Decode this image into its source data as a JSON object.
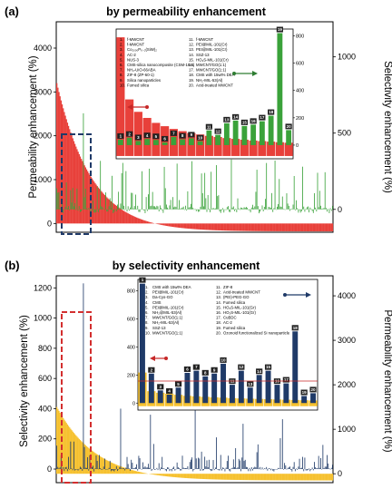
{
  "colors": {
    "permeability_a": "#e8403a",
    "selectivity_a": "#3aa23a",
    "selectivity_b": "#1f3a68",
    "permeability_b": "#f6c12f",
    "box_a": "#1f3a68",
    "box_b": "#d32f2f"
  },
  "chart_data": [
    {
      "type": "bar",
      "panel_label": "(a)",
      "title": "by permeability enhancement",
      "ylabel_left": "Permeability enhancement (%)",
      "ylabel_right": "Selectivity enhancement (%)",
      "ylim_left": [
        -200,
        4600
      ],
      "ylim_right": [
        -150,
        1230
      ],
      "yticks_left": [
        "0",
        "1000",
        "2000",
        "3000",
        "4000"
      ],
      "yticks_right": [
        "0",
        "500",
        "1000"
      ],
      "primary_series": {
        "name": "Permeability enhancement",
        "axis": "left",
        "sort": "descending",
        "start": 3200,
        "end": -180,
        "count": 260
      },
      "secondary_series": {
        "name": "Selectivity enhancement",
        "axis": "right",
        "spikes": [
          [
            25,
            630
          ],
          [
            52,
            220
          ],
          [
            80,
            250
          ],
          [
            113,
            300
          ],
          [
            150,
            290
          ],
          [
            188,
            260
          ],
          [
            205,
            320
          ],
          [
            231,
            280
          ],
          [
            245,
            240
          ]
        ]
      },
      "highlight_box": "top 20",
      "inset": {
        "ylim_left": [
          -100,
          4600
        ],
        "ylim_right": [
          -100,
          850
        ],
        "yticks_right": [
          "0",
          "200",
          "400",
          "600",
          "800"
        ],
        "permeability_values": [
          4300,
          2050,
          1600,
          1380,
          1200,
          1080,
          980,
          900,
          830,
          780,
          730,
          690,
          650,
          620,
          590,
          560,
          540,
          520,
          500,
          480
        ],
        "selectivity_values": [
          40,
          55,
          30,
          45,
          38,
          20,
          60,
          42,
          50,
          28,
          108,
          75,
          160,
          180,
          140,
          150,
          175,
          215,
          820,
          110
        ],
        "legend": [
          {
            "num": "1.",
            "text": "f-MWCNT"
          },
          {
            "num": "2.",
            "text": "f-MWCNT"
          },
          {
            "num": "3.",
            "text": "Co₁₀₀₀Pₓ₋₂(SiW)₂"
          },
          {
            "num": "4.",
            "text": "AC-2"
          },
          {
            "num": "5.",
            "text": "NUS-3"
          },
          {
            "num": "6.",
            "text": "CMS-silica nanocomposite (CSM-18.4)"
          },
          {
            "num": "7.",
            "text": "NH₂-UiO-66ABA"
          },
          {
            "num": "8.",
            "text": "ZIF-8 (ZP-60-1)"
          },
          {
            "num": "9.",
            "text": "Silica nanoparticles"
          },
          {
            "num": "10.",
            "text": "Fumed silica"
          },
          {
            "num": "11.",
            "text": "f-MWCNT"
          },
          {
            "num": "12.",
            "text": "PEI@MIL-101(Cr)"
          },
          {
            "num": "13.",
            "text": "PEI@MIL-101(Cr)"
          },
          {
            "num": "14.",
            "text": "SSZ-13"
          },
          {
            "num": "15.",
            "text": "HO₃S-MIL-101(Cr)"
          },
          {
            "num": "16.",
            "text": "MWCNT/GO(1:1)"
          },
          {
            "num": "17.",
            "text": "MWCNT/GO(1:1)"
          },
          {
            "num": "18.",
            "text": "CMS with 15wt% DEA"
          },
          {
            "num": "19.",
            "text": "NH₂-MIL-53(Al)"
          },
          {
            "num": "20.",
            "text": "Acid-treated MWCNT"
          }
        ]
      }
    },
    {
      "type": "bar",
      "panel_label": "(b)",
      "title": "by selectivity enhancement",
      "ylabel_left": "Selectivity enhancement (%)",
      "ylabel_right": "Permeability enhancement (%)",
      "ylim_left": [
        -90,
        1280
      ],
      "ylim_right": [
        -200,
        4450
      ],
      "yticks_left": [
        "0",
        "200",
        "400",
        "600",
        "800",
        "1000",
        "1200"
      ],
      "yticks_right": [
        "0",
        "1000",
        "2000",
        "3000",
        "4000"
      ],
      "primary_series": {
        "name": "Permeability enhancement",
        "axis": "right",
        "sort": "descending",
        "start": 1500,
        "end": -150,
        "count": 260
      },
      "secondary_series": {
        "name": "Selectivity enhancement",
        "axis": "left",
        "spikes": [
          [
            25,
            1230
          ],
          [
            60,
            400
          ],
          [
            88,
            360
          ],
          [
            130,
            430
          ],
          [
            150,
            210
          ],
          [
            175,
            300
          ],
          [
            212,
            330
          ],
          [
            250,
            160
          ]
        ]
      },
      "highlight_box": "top 20",
      "inset": {
        "ylim_left": [
          -50,
          880
        ],
        "ylim_right": [
          -150,
          4900
        ],
        "yticks_left": [
          "0",
          "200",
          "400",
          "600",
          "800"
        ],
        "selectivity_values": [
          850,
          210,
          90,
          60,
          110,
          215,
          230,
          190,
          210,
          280,
          130,
          230,
          110,
          200,
          230,
          130,
          140,
          510,
          50,
          70
        ],
        "permeability_values": [
          1300,
          580,
          520,
          480,
          440,
          400,
          380,
          360,
          340,
          330,
          310,
          300,
          290,
          280,
          270,
          260,
          250,
          240,
          230,
          220
        ],
        "legend": [
          {
            "num": "1.",
            "text": "CMS with 15wt% DEA"
          },
          {
            "num": "2.",
            "text": "PEI@MIL-101(Cr)"
          },
          {
            "num": "3.",
            "text": "Da-Cys-GO"
          },
          {
            "num": "4.",
            "text": "CMS"
          },
          {
            "num": "5.",
            "text": "PEI@MIL-101(Cr)"
          },
          {
            "num": "6.",
            "text": "NH₂@MIL-53(Al)"
          },
          {
            "num": "7.",
            "text": "MWCNT/GO(1:1)"
          },
          {
            "num": "8.",
            "text": "NH₂-MIL-53(Al)"
          },
          {
            "num": "9.",
            "text": "SSZ-13"
          },
          {
            "num": "10.",
            "text": "MWCNT/GO(1:1)"
          },
          {
            "num": "11.",
            "text": "ZIF-8"
          },
          {
            "num": "12.",
            "text": "Acid-treated MWCNT"
          },
          {
            "num": "13.",
            "text": "(PEI)-PEG-GO"
          },
          {
            "num": "14.",
            "text": "Fumed silica"
          },
          {
            "num": "15.",
            "text": "HO₃S-MIL-101(Gr)"
          },
          {
            "num": "16.",
            "text": "HO₃S-MIL-101(Gr)"
          },
          {
            "num": "17.",
            "text": "CuBDC"
          },
          {
            "num": "18.",
            "text": "AC-2"
          },
          {
            "num": "19.",
            "text": "Fumed silica"
          },
          {
            "num": "20.",
            "text": "Ozonoid functionalized Si nanoparticle"
          }
        ]
      }
    }
  ]
}
